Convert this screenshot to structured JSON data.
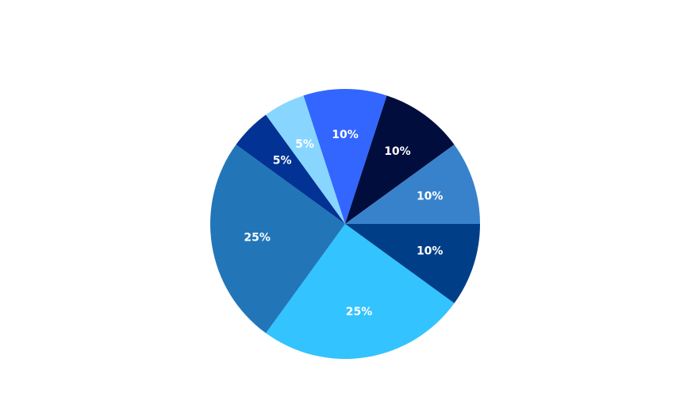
{
  "chart_data": {
    "type": "pie",
    "title": "",
    "slices": [
      {
        "label": "10%",
        "value": 10,
        "color": "#3366FF"
      },
      {
        "label": "10%",
        "value": 10,
        "color": "#000D3D"
      },
      {
        "label": "10%",
        "value": 10,
        "color": "#3882CC"
      },
      {
        "label": "10%",
        "value": 10,
        "color": "#003F88"
      },
      {
        "label": "25%",
        "value": 25,
        "color": "#33C3FF"
      },
      {
        "label": "25%",
        "value": 25,
        "color": "#2276B8"
      },
      {
        "label": "5%",
        "value": 5,
        "color": "#013294"
      },
      {
        "label": "5%",
        "value": 5,
        "color": "#88D6FF"
      }
    ]
  }
}
